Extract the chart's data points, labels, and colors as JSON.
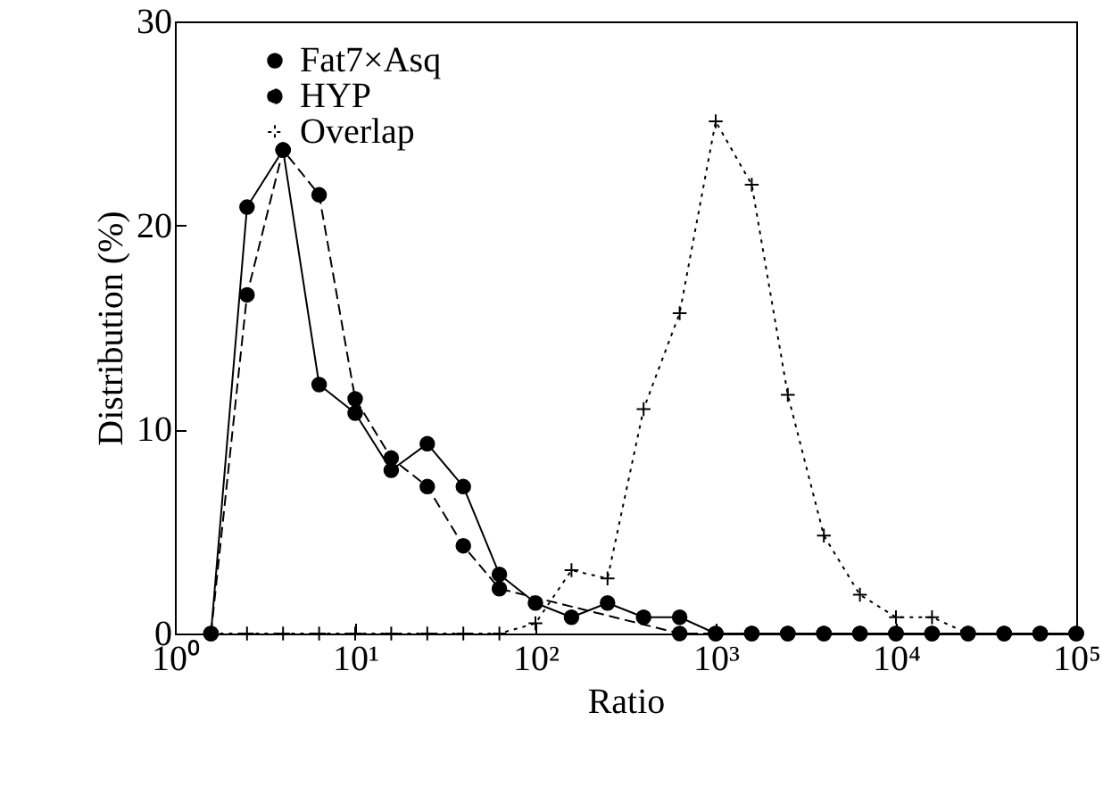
{
  "chart_data": {
    "type": "line",
    "xlabel": "Ratio",
    "ylabel": "Distribution (%)",
    "x": [
      1.585,
      2.512,
      3.981,
      6.31,
      10,
      15.85,
      25.12,
      39.81,
      63.1,
      100,
      158.5,
      251.2,
      398.1,
      631,
      1000,
      1585,
      2512,
      3981,
      6310,
      10000,
      15850,
      25120,
      39810,
      63100,
      100000
    ],
    "series": [
      {
        "name": "Fat7×Asq",
        "color": "#000000",
        "marker": "circle",
        "line_style": "solid",
        "values": [
          0,
          20.9,
          23.7,
          12.2,
          10.8,
          8.0,
          9.3,
          7.2,
          2.9,
          1.5,
          0.8,
          1.5,
          0.8,
          0.8,
          0,
          0,
          0,
          0,
          0,
          0,
          0,
          0,
          0,
          0,
          0
        ]
      },
      {
        "name": "HYP",
        "color": "#000000",
        "marker": "circle",
        "line_style": "dashed",
        "values": [
          0,
          16.6,
          23.7,
          21.5,
          11.5,
          8.6,
          7.2,
          4.3,
          2.2,
          null,
          null,
          null,
          null,
          0,
          0,
          0,
          0,
          0,
          0,
          0,
          0,
          0,
          0,
          0,
          0
        ]
      },
      {
        "name": "Overlap",
        "color": "#000000",
        "marker": "cross",
        "line_style": "dotted",
        "values": [
          0,
          0,
          0,
          0,
          0,
          0,
          0,
          0,
          0,
          0.5,
          3.1,
          2.7,
          11.0,
          15.7,
          25.1,
          22.0,
          11.7,
          4.8,
          1.9,
          0.8,
          0.8,
          0,
          0,
          0,
          0
        ]
      }
    ],
    "log": "x",
    "xlim": [
      1,
      100000
    ],
    "xticks": [
      {
        "value": 1,
        "label": "10⁰"
      },
      {
        "value": 10,
        "label": "10¹"
      },
      {
        "value": 100,
        "label": "10²"
      },
      {
        "value": 1000,
        "label": "10³"
      },
      {
        "value": 10000,
        "label": "10⁴"
      },
      {
        "value": 100000,
        "label": "10⁵"
      }
    ],
    "ylim": [
      0,
      30
    ],
    "yticks": [
      0,
      10,
      20,
      30
    ],
    "grid": false,
    "legend": "top left"
  }
}
